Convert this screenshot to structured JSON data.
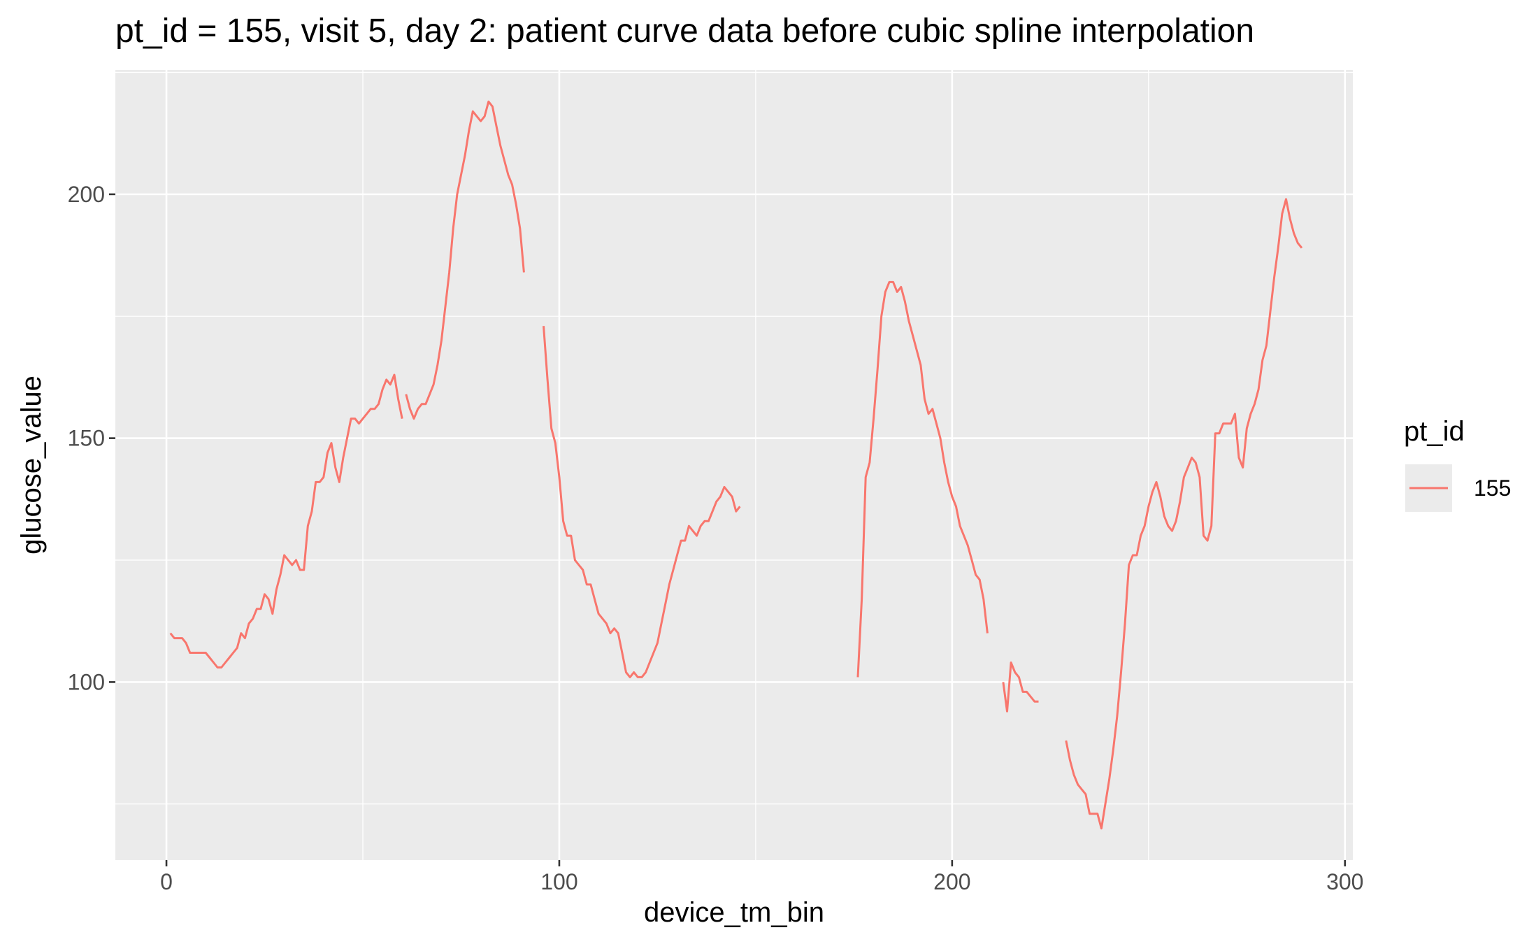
{
  "chart_data": {
    "type": "line",
    "title": "pt_id = 155, visit 5, day 2: patient curve data before cubic spline interpolation",
    "xlabel": "device_tm_bin",
    "ylabel": "glucose_value",
    "xlim": [
      -13,
      302
    ],
    "ylim": [
      63.5,
      225.5
    ],
    "x_ticks": [
      0,
      100,
      200,
      300
    ],
    "y_ticks": [
      100,
      150,
      200
    ],
    "grid": true,
    "legend": {
      "title": "pt_id",
      "position": "right",
      "entries": [
        {
          "label": "155",
          "color": "#F8766D"
        }
      ]
    },
    "series": [
      {
        "name": "155",
        "color": "#F8766D",
        "segments": [
          [
            [
              1,
              110
            ],
            [
              2,
              109
            ],
            [
              3,
              109
            ],
            [
              4,
              109
            ],
            [
              5,
              108
            ],
            [
              6,
              106
            ],
            [
              7,
              106
            ],
            [
              8,
              106
            ],
            [
              9,
              106
            ],
            [
              10,
              106
            ],
            [
              11,
              105
            ],
            [
              12,
              104
            ],
            [
              13,
              103
            ],
            [
              14,
              103
            ],
            [
              15,
              104
            ],
            [
              16,
              105
            ],
            [
              17,
              106
            ],
            [
              18,
              107
            ],
            [
              19,
              110
            ],
            [
              20,
              109
            ],
            [
              21,
              112
            ],
            [
              22,
              113
            ],
            [
              23,
              115
            ],
            [
              24,
              115
            ],
            [
              25,
              118
            ],
            [
              26,
              117
            ],
            [
              27,
              114
            ],
            [
              28,
              119
            ],
            [
              29,
              122
            ],
            [
              30,
              126
            ],
            [
              31,
              125
            ],
            [
              32,
              124
            ],
            [
              33,
              125
            ],
            [
              34,
              123
            ],
            [
              35,
              123
            ],
            [
              36,
              132
            ],
            [
              37,
              135
            ],
            [
              38,
              141
            ],
            [
              39,
              141
            ],
            [
              40,
              142
            ],
            [
              41,
              147
            ],
            [
              42,
              149
            ],
            [
              43,
              144
            ],
            [
              44,
              141
            ],
            [
              45,
              146
            ],
            [
              46,
              150
            ],
            [
              47,
              154
            ],
            [
              48,
              154
            ],
            [
              49,
              153
            ],
            [
              50,
              154
            ],
            [
              51,
              155
            ],
            [
              52,
              156
            ],
            [
              53,
              156
            ],
            [
              54,
              157
            ],
            [
              55,
              160
            ],
            [
              56,
              162
            ],
            [
              57,
              161
            ],
            [
              58,
              163
            ],
            [
              59,
              158
            ],
            [
              60,
              154
            ]
          ],
          [
            [
              61,
              159
            ],
            [
              62,
              156
            ],
            [
              63,
              154
            ],
            [
              64,
              156
            ],
            [
              65,
              157
            ],
            [
              66,
              157
            ],
            [
              67,
              159
            ],
            [
              68,
              161
            ],
            [
              69,
              165
            ],
            [
              70,
              170
            ],
            [
              71,
              177
            ],
            [
              72,
              184
            ],
            [
              73,
              193
            ],
            [
              74,
              200
            ],
            [
              75,
              204
            ],
            [
              76,
              208
            ],
            [
              77,
              213
            ],
            [
              78,
              217
            ],
            [
              79,
              216
            ],
            [
              80,
              215
            ],
            [
              81,
              216
            ],
            [
              82,
              219
            ],
            [
              83,
              218
            ],
            [
              84,
              214
            ],
            [
              85,
              210
            ],
            [
              86,
              207
            ],
            [
              87,
              204
            ],
            [
              88,
              202
            ],
            [
              89,
              198
            ],
            [
              90,
              193
            ],
            [
              91,
              184
            ]
          ],
          [
            [
              96,
              173
            ],
            [
              97,
              162
            ],
            [
              98,
              152
            ],
            [
              99,
              149
            ],
            [
              100,
              142
            ],
            [
              101,
              133
            ],
            [
              102,
              130
            ],
            [
              103,
              130
            ],
            [
              104,
              125
            ],
            [
              105,
              124
            ],
            [
              106,
              123
            ],
            [
              107,
              120
            ],
            [
              108,
              120
            ],
            [
              109,
              117
            ],
            [
              110,
              114
            ],
            [
              111,
              113
            ],
            [
              112,
              112
            ],
            [
              113,
              110
            ],
            [
              114,
              111
            ],
            [
              115,
              110
            ],
            [
              116,
              106
            ],
            [
              117,
              102
            ],
            [
              118,
              101
            ],
            [
              119,
              102
            ],
            [
              120,
              101
            ],
            [
              121,
              101
            ],
            [
              122,
              102
            ],
            [
              123,
              104
            ],
            [
              124,
              106
            ],
            [
              125,
              108
            ],
            [
              126,
              112
            ],
            [
              127,
              116
            ],
            [
              128,
              120
            ],
            [
              129,
              123
            ],
            [
              130,
              126
            ],
            [
              131,
              129
            ],
            [
              132,
              129
            ],
            [
              133,
              132
            ],
            [
              134,
              131
            ],
            [
              135,
              130
            ],
            [
              136,
              132
            ],
            [
              137,
              133
            ],
            [
              138,
              133
            ],
            [
              139,
              135
            ],
            [
              140,
              137
            ],
            [
              141,
              138
            ],
            [
              142,
              140
            ],
            [
              143,
              139
            ],
            [
              144,
              138
            ],
            [
              145,
              135
            ],
            [
              146,
              136
            ]
          ],
          [
            [
              176,
              101
            ],
            [
              177,
              117
            ],
            [
              178,
              142
            ],
            [
              179,
              145
            ],
            [
              180,
              154
            ],
            [
              181,
              164
            ],
            [
              182,
              175
            ],
            [
              183,
              180
            ],
            [
              184,
              182
            ],
            [
              185,
              182
            ],
            [
              186,
              180
            ],
            [
              187,
              181
            ],
            [
              188,
              178
            ],
            [
              189,
              174
            ],
            [
              190,
              171
            ],
            [
              191,
              168
            ],
            [
              192,
              165
            ],
            [
              193,
              158
            ],
            [
              194,
              155
            ],
            [
              195,
              156
            ],
            [
              196,
              153
            ],
            [
              197,
              150
            ],
            [
              198,
              145
            ],
            [
              199,
              141
            ],
            [
              200,
              138
            ],
            [
              201,
              136
            ],
            [
              202,
              132
            ],
            [
              203,
              130
            ],
            [
              204,
              128
            ],
            [
              205,
              125
            ],
            [
              206,
              122
            ],
            [
              207,
              121
            ],
            [
              208,
              117
            ],
            [
              209,
              110
            ]
          ],
          [
            [
              213,
              100
            ],
            [
              214,
              94
            ],
            [
              215,
              104
            ],
            [
              216,
              102
            ],
            [
              217,
              101
            ],
            [
              218,
              98
            ],
            [
              219,
              98
            ],
            [
              220,
              97
            ],
            [
              221,
              96
            ],
            [
              222,
              96
            ]
          ],
          [
            [
              229,
              88
            ],
            [
              230,
              84
            ],
            [
              231,
              81
            ],
            [
              232,
              79
            ],
            [
              233,
              78
            ],
            [
              234,
              77
            ],
            [
              235,
              73
            ],
            [
              236,
              73
            ],
            [
              237,
              73
            ],
            [
              238,
              70
            ],
            [
              239,
              75
            ],
            [
              240,
              80
            ],
            [
              241,
              86
            ],
            [
              242,
              93
            ],
            [
              243,
              102
            ],
            [
              244,
              112
            ],
            [
              245,
              124
            ],
            [
              246,
              126
            ],
            [
              247,
              126
            ],
            [
              248,
              130
            ],
            [
              249,
              132
            ],
            [
              250,
              136
            ],
            [
              251,
              139
            ],
            [
              252,
              141
            ],
            [
              253,
              138
            ],
            [
              254,
              134
            ],
            [
              255,
              132
            ],
            [
              256,
              131
            ],
            [
              257,
              133
            ],
            [
              258,
              137
            ],
            [
              259,
              142
            ],
            [
              260,
              144
            ],
            [
              261,
              146
            ],
            [
              262,
              145
            ],
            [
              263,
              142
            ],
            [
              264,
              130
            ],
            [
              265,
              129
            ],
            [
              266,
              132
            ],
            [
              267,
              151
            ],
            [
              268,
              151
            ],
            [
              269,
              153
            ],
            [
              270,
              153
            ],
            [
              271,
              153
            ],
            [
              272,
              155
            ],
            [
              273,
              146
            ],
            [
              274,
              144
            ],
            [
              275,
              152
            ],
            [
              276,
              155
            ],
            [
              277,
              157
            ],
            [
              278,
              160
            ],
            [
              279,
              166
            ],
            [
              280,
              169
            ],
            [
              281,
              176
            ],
            [
              282,
              183
            ],
            [
              283,
              189
            ],
            [
              284,
              196
            ],
            [
              285,
              199
            ],
            [
              286,
              195
            ],
            [
              287,
              192
            ],
            [
              288,
              190
            ],
            [
              289,
              189
            ]
          ]
        ]
      }
    ]
  }
}
